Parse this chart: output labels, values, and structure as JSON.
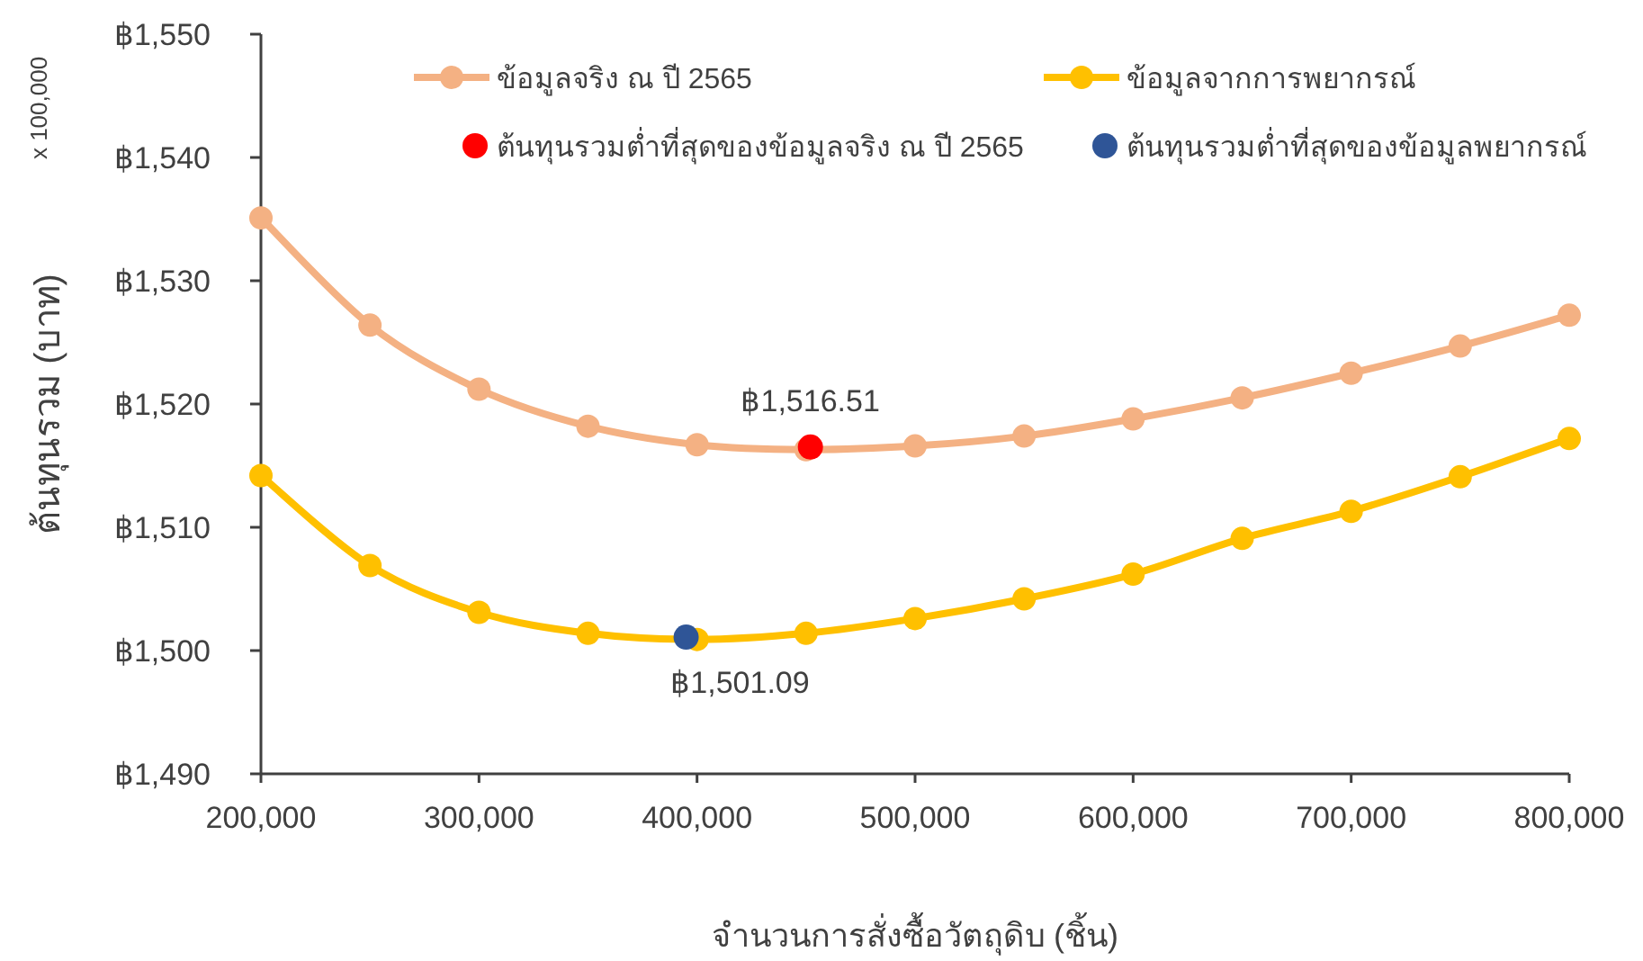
{
  "chart_data": {
    "type": "line",
    "xlabel": "จำนวนการสั่งซื้อวัตถุดิบ (ชิ้น)",
    "ylabel": "ต้นทุนรวม (บาท)",
    "x": [
      200000,
      250000,
      300000,
      350000,
      400000,
      450000,
      500000,
      550000,
      600000,
      650000,
      700000,
      750000,
      800000
    ],
    "series": [
      {
        "name": "ข้อมูลจริง ณ ปี 2565",
        "color": "#f4b183",
        "marker": "circle",
        "values": [
          1535.1,
          1526.4,
          1521.2,
          1518.2,
          1516.7,
          1516.3,
          1516.6,
          1517.4,
          1518.8,
          1520.5,
          1522.5,
          1524.7,
          1527.2
        ]
      },
      {
        "name": "ข้อมูลจากการพยากรณ์",
        "color": "#ffc000",
        "marker": "circle",
        "values": [
          1514.2,
          1506.9,
          1503.1,
          1501.4,
          1500.9,
          1501.4,
          1502.6,
          1504.2,
          1506.2,
          1509.1,
          1511.3,
          1514.1,
          1517.2
        ]
      },
      {
        "name": "ต้นทุนรวมต่ำที่สุดของข้อมูลจริง ณ ปี 2565",
        "type": "scatter",
        "color": "#ff0000",
        "x": [
          452000
        ],
        "values": [
          1516.51
        ]
      },
      {
        "name": "ต้นทุนรวมต่ำที่สุดของข้อมูลพยากรณ์",
        "type": "scatter",
        "color": "#2f5597",
        "x": [
          395000
        ],
        "values": [
          1501.09
        ]
      }
    ],
    "annotations": [
      {
        "text": "฿1,516.51",
        "x": 452000,
        "y": 1516.51
      },
      {
        "text": "฿1,501.09",
        "x": 395000,
        "y": 1501.09
      },
      "x 100,000"
    ],
    "xlim": [
      200000,
      800000
    ],
    "xticks": [
      {
        "value": 200000,
        "label": "200,000"
      },
      {
        "value": 300000,
        "label": "300,000"
      },
      {
        "value": 400000,
        "label": "400,000"
      },
      {
        "value": 500000,
        "label": "500,000"
      },
      {
        "value": 600000,
        "label": "600,000"
      },
      {
        "value": 700000,
        "label": "700,000"
      },
      {
        "value": 800000,
        "label": "800,000"
      }
    ],
    "ylim": [
      1490,
      1550
    ],
    "yticks": [
      {
        "value": 1490,
        "label": "฿1,490"
      },
      {
        "value": 1500,
        "label": "฿1,500"
      },
      {
        "value": 1510,
        "label": "฿1,510"
      },
      {
        "value": 1520,
        "label": "฿1,520"
      },
      {
        "value": 1530,
        "label": "฿1,530"
      },
      {
        "value": 1540,
        "label": "฿1,540"
      },
      {
        "value": 1550,
        "label": "฿1,550"
      }
    ],
    "grid": false,
    "legend": "top"
  }
}
